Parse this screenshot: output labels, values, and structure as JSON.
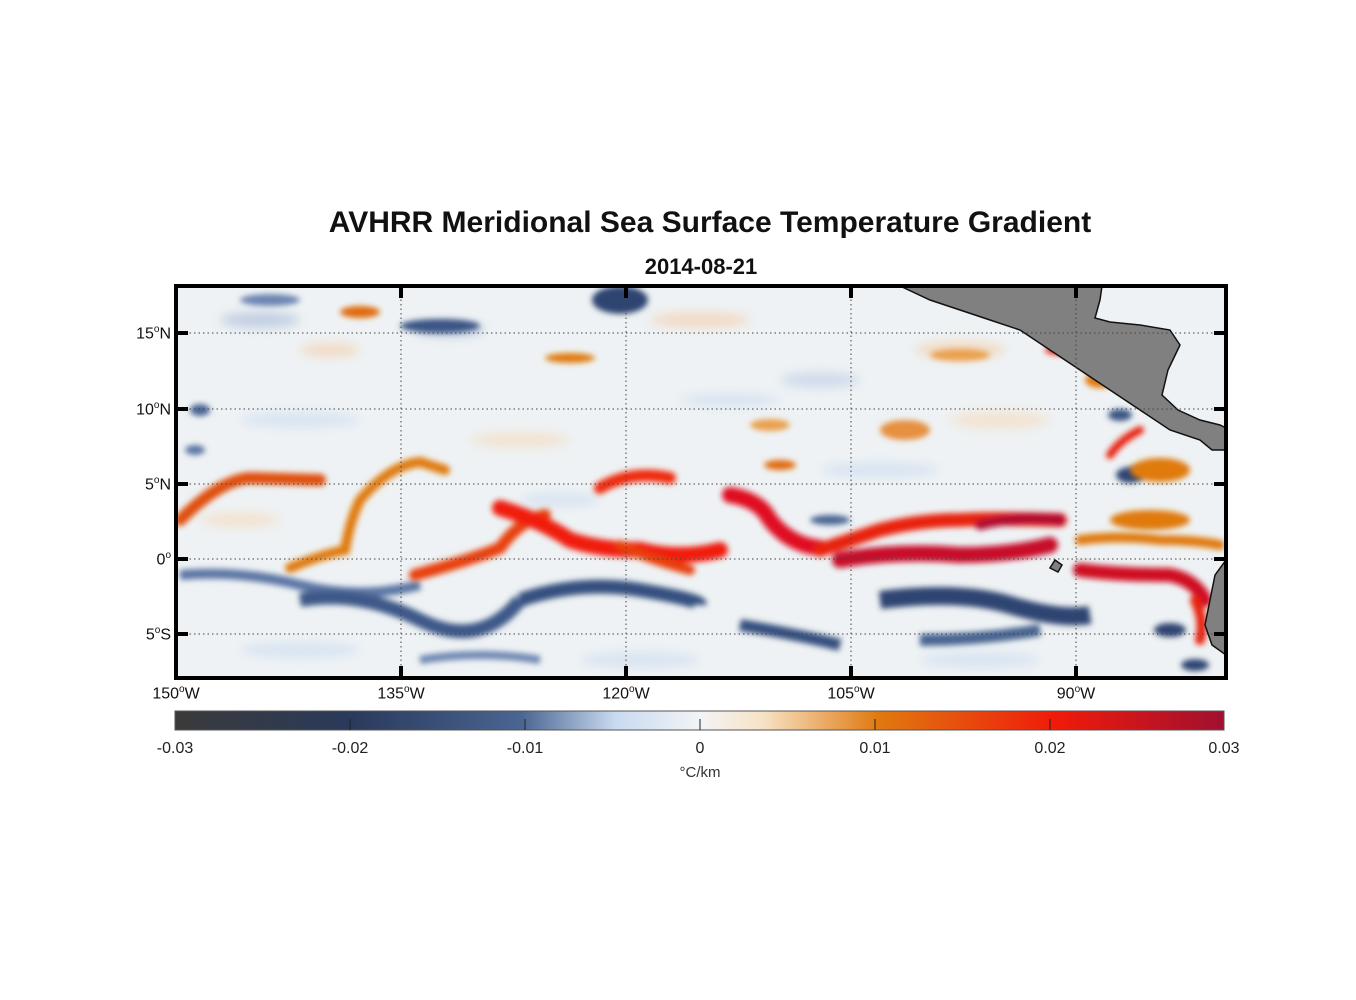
{
  "title": "AVHRR Meridional Sea Surface Temperature Gradient",
  "subtitle": "2014-08-21",
  "map": {
    "lon_range": [
      -150,
      -80
    ],
    "lat_range": [
      -8,
      18
    ],
    "lat_ticks": [
      {
        "label": "15",
        "suffix": "N"
      },
      {
        "label": "10",
        "suffix": "N"
      },
      {
        "label": "5",
        "suffix": "N"
      },
      {
        "label": "0",
        "suffix": ""
      },
      {
        "label": "5",
        "suffix": "S"
      }
    ],
    "lon_ticks": [
      {
        "label": "150",
        "suffix": "W"
      },
      {
        "label": "135",
        "suffix": "W"
      },
      {
        "label": "120",
        "suffix": "W"
      },
      {
        "label": "105",
        "suffix": "W"
      },
      {
        "label": "90",
        "suffix": "W"
      }
    ],
    "land_color": "#808080",
    "grid_style": "dotted"
  },
  "colorbar": {
    "min": -0.03,
    "max": 0.03,
    "tick_labels": [
      "-0.03",
      "-0.02",
      "-0.01",
      "0",
      "0.01",
      "0.02",
      "0.03"
    ],
    "unit": "°C/km",
    "colors": [
      "#3a3a3a",
      "#2a3a5c",
      "#4a6592",
      "#c9daf0",
      "#f2f4f6",
      "#f7e3c6",
      "#e07a10",
      "#f01a0a",
      "#a01030"
    ]
  }
}
